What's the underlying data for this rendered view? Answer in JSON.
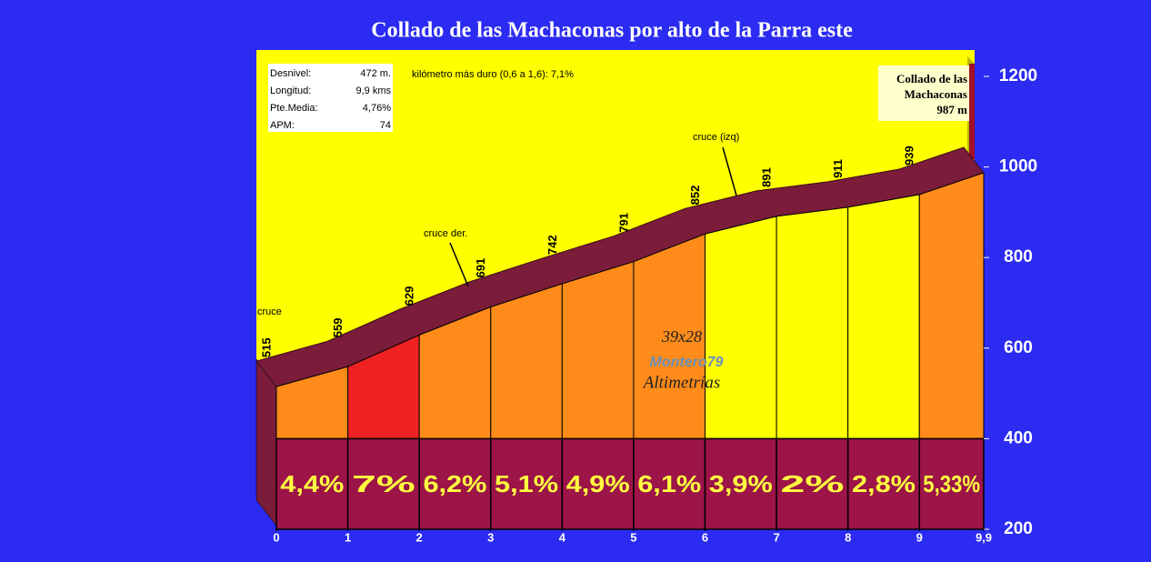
{
  "chart_data": {
    "type": "profile",
    "title": "Collado de las Machaconas por alto de la Parra este",
    "x": [
      0,
      1,
      2,
      3,
      4,
      5,
      6,
      7,
      8,
      9,
      9.9
    ],
    "xlim": [
      0,
      9.9
    ],
    "xticks": [
      0,
      1,
      2,
      3,
      4,
      5,
      6,
      7,
      8,
      9,
      {
        "value": 9.9,
        "label": "9,9"
      }
    ],
    "ylim": [
      200,
      1200
    ],
    "yticks": [
      200,
      400,
      600,
      800,
      1000,
      1200
    ],
    "base": 400,
    "elevations": [
      515,
      559,
      629,
      691,
      742,
      791,
      852,
      891,
      911,
      939,
      987
    ],
    "elevation_labels_count": 10,
    "gradients": {
      "values": [
        4.4,
        7,
        6.2,
        5.1,
        4.9,
        6.1,
        3.9,
        2,
        2.8,
        5.33
      ],
      "value_labels": [
        "4,4%",
        "7%",
        "6,2%",
        "5,1%",
        "4,9%",
        "6,1%",
        "3,9%",
        "2%",
        "2,8%",
        "5,33%"
      ],
      "colors": [
        "#ff8c1a",
        "#ee2222",
        "#ff8c1a",
        "#ff8c1a",
        "#ff8c1a",
        "#ff8c1a",
        "#ffff00",
        "#ffff00",
        "#ffff00",
        "#ff8c1a"
      ]
    },
    "summit": [
      "Collado de las",
      "Machaconas",
      "987 m"
    ],
    "stats": [
      [
        "Desnivel:",
        "472 m."
      ],
      [
        "Longitud:",
        "9,9 kms"
      ],
      [
        "Pte.Media:",
        "4,76%"
      ],
      [
        "APM:",
        "74"
      ]
    ],
    "hardest_km": "kilómetro más duro (0,6 a 1,6):  7,1%",
    "annotations": [
      "cruce",
      "cruce der.",
      "cruce (izq)"
    ],
    "watermark": [
      "39x28",
      "Montero79",
      "Altimetrías"
    ]
  }
}
